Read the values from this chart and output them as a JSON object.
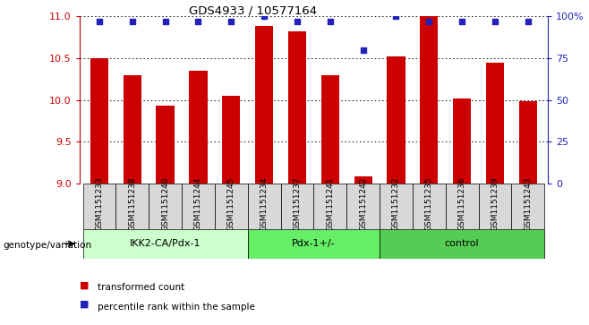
{
  "title": "GDS4933 / 10577164",
  "samples": [
    "GSM1151233",
    "GSM1151238",
    "GSM1151240",
    "GSM1151244",
    "GSM1151245",
    "GSM1151234",
    "GSM1151237",
    "GSM1151241",
    "GSM1151242",
    "GSM1151232",
    "GSM1151235",
    "GSM1151236",
    "GSM1151239",
    "GSM1151243"
  ],
  "bar_values": [
    10.5,
    10.3,
    9.93,
    10.35,
    10.05,
    10.88,
    10.82,
    10.3,
    9.09,
    10.52,
    11.0,
    10.02,
    10.45,
    9.99
  ],
  "dot_values": [
    97,
    97,
    97,
    97,
    97,
    100,
    97,
    97,
    80,
    100,
    97,
    97,
    97,
    97
  ],
  "bar_color": "#cc0000",
  "dot_color": "#2222bb",
  "ylim_left": [
    9.0,
    11.0
  ],
  "ylim_right": [
    0,
    100
  ],
  "yticks_left": [
    9.0,
    9.5,
    10.0,
    10.5,
    11.0
  ],
  "yticks_right": [
    0,
    25,
    50,
    75,
    100
  ],
  "ytick_labels_right": [
    "0",
    "25",
    "50",
    "75",
    "100%"
  ],
  "groups": [
    {
      "label": "IKK2-CA/Pdx-1",
      "start": 0,
      "end": 5,
      "color": "#ccffcc"
    },
    {
      "label": "Pdx-1+/-",
      "start": 5,
      "end": 9,
      "color": "#66ee66"
    },
    {
      "label": "control",
      "start": 9,
      "end": 14,
      "color": "#55cc55"
    }
  ],
  "genotype_label": "genotype/variation",
  "legend_items": [
    {
      "label": "transformed count",
      "color": "#cc0000"
    },
    {
      "label": "percentile rank within the sample",
      "color": "#2222bb"
    }
  ],
  "bg_color": "#d8d8d8"
}
